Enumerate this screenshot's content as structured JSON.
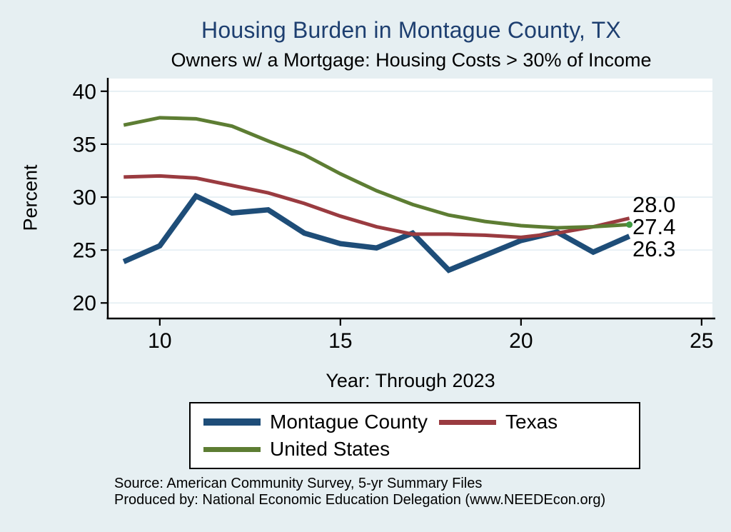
{
  "source": {
    "line1": "Source: American Community Survey, 5-yr Summary Files",
    "line2": "Produced by: National Economic Education Delegation (www.NEEDEcon.org)"
  },
  "colors": {
    "background": "#e6eff2",
    "plot_background": "#ffffff",
    "gridline": "#e2edf2",
    "axis": "#000000",
    "title": "#1e3f70",
    "montague_blue": "#1e4d78",
    "texas_maroon": "#9a3b40",
    "us_green": "#5d7d33",
    "end_marker_green": "#3f9a41"
  },
  "chart_data": {
    "type": "line",
    "title": "Housing Burden in Montague County, TX",
    "subtitle": "Owners w/ a Mortgage: Housing Costs > 30% of Income",
    "xlabel": "Year: Through 2023",
    "ylabel": "Percent",
    "x": [
      9,
      10,
      11,
      12,
      13,
      14,
      15,
      16,
      17,
      18,
      19,
      20,
      21,
      22,
      23
    ],
    "series": [
      {
        "name": "Montague County",
        "color": "#1e4d78",
        "line_width": 7.5,
        "values": [
          23.9,
          25.4,
          30.1,
          28.5,
          28.8,
          26.6,
          25.6,
          25.2,
          26.6,
          23.1,
          24.5,
          25.9,
          26.7,
          24.8,
          26.3
        ]
      },
      {
        "name": "Texas",
        "color": "#9a3b40",
        "line_width": 5,
        "values": [
          31.9,
          32.0,
          31.8,
          31.1,
          30.4,
          29.4,
          28.2,
          27.2,
          26.5,
          26.5,
          26.4,
          26.2,
          26.6,
          27.2,
          28.0
        ]
      },
      {
        "name": "United States",
        "color": "#5d7d33",
        "line_width": 5,
        "end_marker": true,
        "values": [
          36.8,
          37.5,
          37.4,
          36.7,
          35.3,
          34.0,
          32.2,
          30.6,
          29.3,
          28.3,
          27.7,
          27.3,
          27.1,
          27.2,
          27.4
        ]
      }
    ],
    "end_labels": [
      "28.0",
      "27.4",
      "26.3"
    ],
    "xlim": [
      8.58,
      25.3
    ],
    "ylim": [
      18.6,
      41.2
    ],
    "xticks": [
      10,
      15,
      20,
      25
    ],
    "yticks": [
      20,
      25,
      30,
      35,
      40
    ],
    "grid": true,
    "legend_position": "bottom"
  }
}
